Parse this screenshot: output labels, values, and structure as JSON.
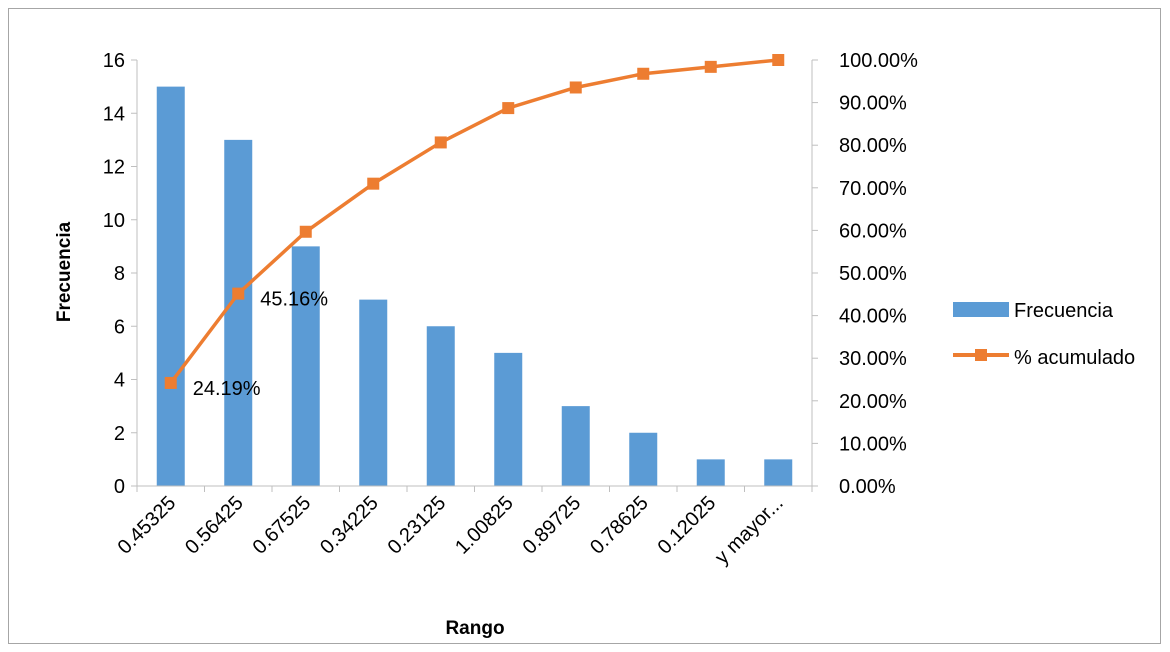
{
  "chart_data": {
    "type": "bar",
    "categories": [
      "0.45325",
      "0.56425",
      "0.67525",
      "0.34225",
      "0.23125",
      "1.00825",
      "0.89725",
      "0.78625",
      "0.12025",
      "y mayor..."
    ],
    "series": [
      {
        "name": "Frecuencia",
        "type": "bar",
        "axis": "left",
        "color": "#5b9bd5",
        "values": [
          15,
          13,
          9,
          7,
          6,
          5,
          3,
          2,
          1,
          1
        ]
      },
      {
        "name": "% acumulado",
        "type": "line",
        "axis": "right",
        "color": "#ed7d31",
        "marker": "square",
        "values": [
          24.19,
          45.16,
          59.68,
          70.97,
          80.65,
          88.71,
          93.55,
          96.77,
          98.39,
          100.0
        ]
      }
    ],
    "data_labels": [
      {
        "series": "% acumulado",
        "index": 0,
        "text": "24.19%"
      },
      {
        "series": "% acumulado",
        "index": 1,
        "text": "45.16%"
      }
    ],
    "xlabel": "Rango",
    "ylabel": "Frecuencia",
    "ylim": [
      0,
      16
    ],
    "yticks": [
      "0",
      "2",
      "4",
      "6",
      "8",
      "10",
      "12",
      "14",
      "16"
    ],
    "y2lim": [
      0,
      100
    ],
    "y2ticks": [
      "0.00%",
      "10.00%",
      "20.00%",
      "30.00%",
      "40.00%",
      "50.00%",
      "60.00%",
      "70.00%",
      "80.00%",
      "90.00%",
      "100.00%"
    ],
    "grid": false,
    "legend_position": "right"
  }
}
